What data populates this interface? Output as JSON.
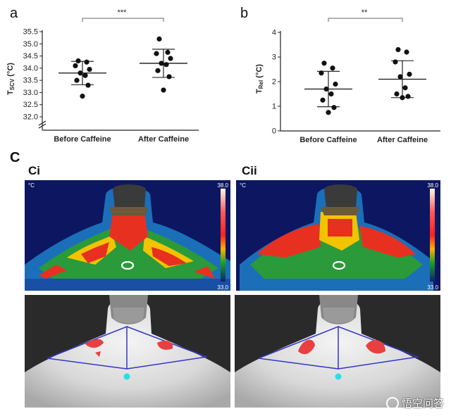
{
  "figure": {
    "panel_a": "a",
    "panel_b": "b",
    "panel_c": "C",
    "sub_ci": "Ci",
    "sub_cii": "Cii",
    "thermal_unit": "°C",
    "scale_max": "38.0",
    "scale_min": "33.0",
    "watermark": "悟空问答"
  },
  "chart_data": [
    {
      "type": "scatter",
      "ylabel": "TSCV (°C)",
      "ylabel_main": "T",
      "ylabel_sub": "SCV",
      "ylabel_unit": " (°C)",
      "categories": [
        "Before Caffeine",
        "After Caffeine"
      ],
      "ylim": [
        32.0,
        35.5
      ],
      "yticks": [
        "32.0",
        "32.5",
        "33.0",
        "33.5",
        "34.0",
        "34.5",
        "35.0",
        "35.5"
      ],
      "axis_break": true,
      "significance": "***",
      "series": [
        {
          "values": [
            34.3,
            34.25,
            34.1,
            33.95,
            33.8,
            33.7,
            33.5,
            33.3,
            32.85
          ],
          "mean": 33.8,
          "sd": 0.48
        },
        {
          "values": [
            35.2,
            34.65,
            34.6,
            34.4,
            34.2,
            34.15,
            33.9,
            33.65,
            33.1
          ],
          "mean": 34.2,
          "sd": 0.58
        }
      ]
    },
    {
      "type": "scatter",
      "ylabel": "TRel (°C)",
      "ylabel_main": "T",
      "ylabel_sub": "Rel",
      "ylabel_unit": " (°C)",
      "categories": [
        "Before Caffeine",
        "After Caffeine"
      ],
      "ylim": [
        0,
        4
      ],
      "yticks": [
        "0",
        "1",
        "2",
        "3",
        "4"
      ],
      "significance": "**",
      "series": [
        {
          "values": [
            2.75,
            2.55,
            2.35,
            1.9,
            1.7,
            1.5,
            1.25,
            0.95,
            0.75
          ],
          "mean": 1.7,
          "sd": 0.72
        },
        {
          "values": [
            3.3,
            3.2,
            2.8,
            2.3,
            2.2,
            1.75,
            1.5,
            1.4,
            1.35
          ],
          "mean": 2.1,
          "sd": 0.75
        }
      ]
    }
  ]
}
